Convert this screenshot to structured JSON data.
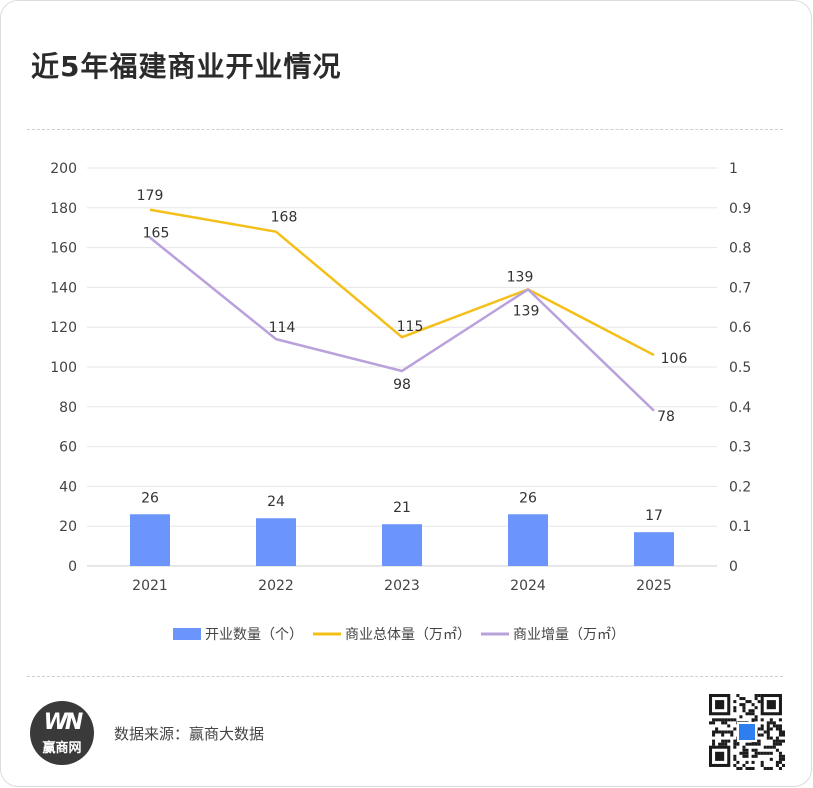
{
  "header": {
    "title": "近5年福建商业开业情况"
  },
  "footer": {
    "source": "数据来源：赢商大数据",
    "logo_mark": "WN",
    "logo_name": "赢商网"
  },
  "colors": {
    "bar": "#6b95fb",
    "total_line": "#f5bf1a",
    "increment_line": "#b9a1dc",
    "grid": "#e6e6e6",
    "axis_text": "#444444"
  },
  "chart_data": {
    "type": "bar",
    "title": "近5年福建商业开业情况",
    "categories": [
      "2021",
      "2022",
      "2023",
      "2024",
      "2025"
    ],
    "y_left": {
      "ticks": [
        0,
        20,
        40,
        60,
        80,
        100,
        120,
        140,
        160,
        180,
        200
      ],
      "ylim": [
        0,
        200
      ]
    },
    "y_right": {
      "ticks": [
        "0",
        "0.1",
        "0.2",
        "0.3",
        "0.4",
        "0.5",
        "0.6",
        "0.7",
        "0.8",
        "0.9",
        "1"
      ],
      "ylim": [
        0,
        1
      ]
    },
    "grid": true,
    "legend_position": "bottom",
    "series": [
      {
        "name": "开业数量（个）",
        "type": "bar",
        "values": [
          26,
          24,
          21,
          26,
          17
        ]
      },
      {
        "name": "商业总体量（万㎡）",
        "type": "line",
        "values": [
          179,
          168,
          115,
          139,
          106
        ]
      },
      {
        "name": "商业增量（万㎡）",
        "type": "line",
        "values": [
          165,
          114,
          98,
          139,
          78
        ]
      }
    ]
  }
}
